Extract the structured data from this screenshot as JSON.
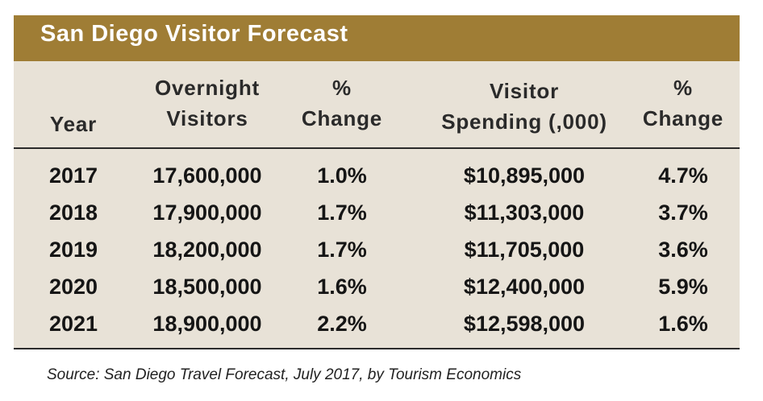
{
  "chart_data": {
    "type": "table",
    "title": "San Diego Visitor Forecast",
    "columns": [
      {
        "key": "year",
        "lines": [
          "Year"
        ]
      },
      {
        "key": "visitors",
        "lines": [
          "Overnight",
          "Visitors"
        ]
      },
      {
        "key": "visitors_change",
        "lines": [
          "%",
          "Change"
        ]
      },
      {
        "key": "spending",
        "lines": [
          "Visitor",
          "Spending (,000)"
        ]
      },
      {
        "key": "spending_change",
        "lines": [
          "%",
          "Change"
        ]
      }
    ],
    "rows": [
      {
        "year": "2017",
        "visitors": "17,600,000",
        "visitors_change": "1.0%",
        "spending": "$10,895,000",
        "spending_change": "4.7%"
      },
      {
        "year": "2018",
        "visitors": "17,900,000",
        "visitors_change": "1.7%",
        "spending": "$11,303,000",
        "spending_change": "3.7%"
      },
      {
        "year": "2019",
        "visitors": "18,200,000",
        "visitors_change": "1.7%",
        "spending": "$11,705,000",
        "spending_change": "3.6%"
      },
      {
        "year": "2020",
        "visitors": "18,500,000",
        "visitors_change": "1.6%",
        "spending": "$12,400,000",
        "spending_change": "5.9%"
      },
      {
        "year": "2021",
        "visitors": "18,900,000",
        "visitors_change": "2.2%",
        "spending": "$12,598,000",
        "spending_change": "1.6%"
      }
    ],
    "source": "Source: San Diego Travel Forecast, July 2017, by Tourism Economics"
  },
  "colors": {
    "title_bar": "#9f7d35",
    "title_text": "#ffffff",
    "table_background": "#e8e2d7",
    "text": "#151515"
  }
}
